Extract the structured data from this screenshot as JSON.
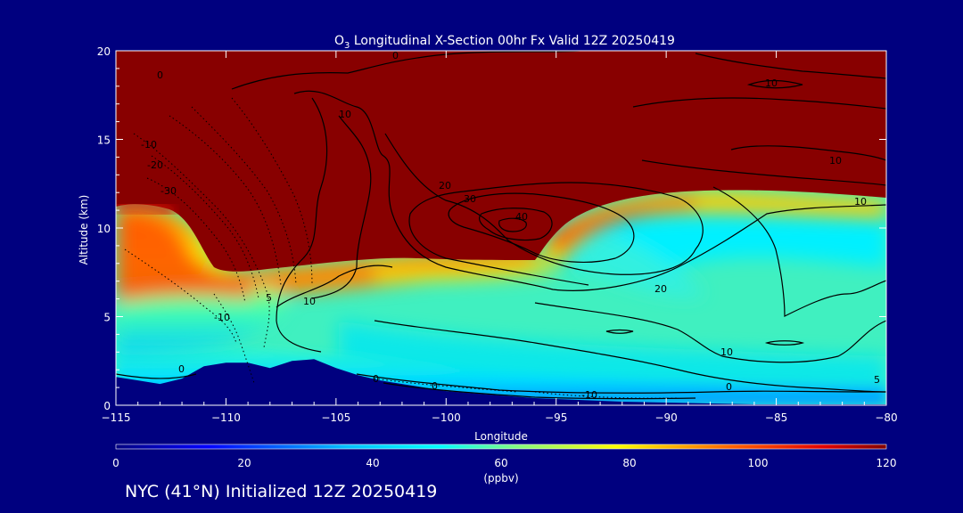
{
  "chart_data": {
    "type": "heatmap",
    "title_prefix": "O",
    "title_subscript": "3",
    "title_suffix": " Longitudinal X-Section 00hr  Fx Valid 12Z 20250419",
    "xlabel": "Longitude",
    "ylabel": "Altitude (km)",
    "xlim": [
      -115,
      -80
    ],
    "ylim": [
      0,
      20
    ],
    "xticks": [
      "−115",
      "−110",
      "−105",
      "−100",
      "−95",
      "−90",
      "−85",
      "−80"
    ],
    "yticks": [
      "0",
      "5",
      "10",
      "15",
      "20"
    ],
    "colorbar": {
      "min": 0,
      "max": 120,
      "ticks": [
        "0",
        "20",
        "40",
        "60",
        "80",
        "100",
        "120"
      ],
      "units": "(ppbv)"
    },
    "terrain_top_km": [
      [
        -115,
        1.6
      ],
      [
        -114,
        1.4
      ],
      [
        -113,
        1.2
      ],
      [
        -112,
        1.5
      ],
      [
        -111,
        2.2
      ],
      [
        -110,
        2.4
      ],
      [
        -109,
        2.4
      ],
      [
        -108,
        2.1
      ],
      [
        -107,
        2.5
      ],
      [
        -106,
        2.6
      ],
      [
        -105,
        2.1
      ],
      [
        -104,
        1.7
      ],
      [
        -103,
        1.4
      ],
      [
        -102,
        1.2
      ],
      [
        -101,
        1.0
      ],
      [
        -100,
        0.8
      ],
      [
        -98,
        0.6
      ],
      [
        -96,
        0.4
      ],
      [
        -94,
        0.3
      ],
      [
        -92,
        0.2
      ],
      [
        -90,
        0.15
      ],
      [
        -88,
        0.1
      ],
      [
        -86,
        0.05
      ],
      [
        -84,
        0.05
      ],
      [
        -80,
        0.05
      ]
    ],
    "contour_labels": [
      "0",
      "10",
      "20",
      "30",
      "40",
      "-10",
      "-20",
      "-30",
      "10",
      "10",
      "20",
      "10",
      "0",
      "0",
      "0",
      "-10",
      "0",
      "10",
      "10",
      "-10",
      "5",
      "0",
      "5"
    ]
  },
  "caption": "NYC (41°N) Initialized 12Z 20250419",
  "colors": {
    "background": "#00007f",
    "frame": "#ffffff"
  }
}
